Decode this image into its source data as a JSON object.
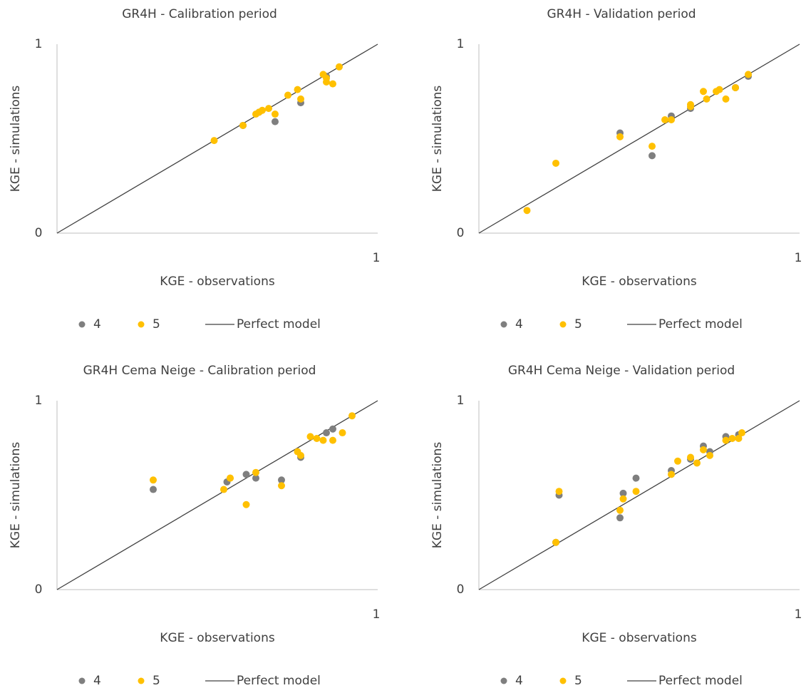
{
  "chart_data": [
    {
      "type": "scatter",
      "title": "GR4H - Calibration period",
      "xlabel": "KGE - observations",
      "ylabel": "KGE - simulations",
      "xlim": [
        0,
        1
      ],
      "ylim": [
        0,
        1
      ],
      "xticks": [
        1
      ],
      "yticks": [
        0,
        1
      ],
      "legend": "bottom",
      "series": [
        {
          "name": "4",
          "color": "#7f7f7f",
          "x": [
            0.58,
            0.68,
            0.76,
            0.63,
            0.84
          ],
          "values": [
            0.57,
            0.59,
            0.69,
            0.64,
            0.83
          ]
        },
        {
          "name": "5",
          "color": "#ffc000",
          "x": [
            0.49,
            0.58,
            0.62,
            0.63,
            0.64,
            0.66,
            0.68,
            0.72,
            0.75,
            0.76,
            0.83,
            0.84,
            0.84,
            0.86,
            0.88
          ],
          "values": [
            0.49,
            0.57,
            0.63,
            0.64,
            0.65,
            0.66,
            0.63,
            0.73,
            0.76,
            0.71,
            0.84,
            0.82,
            0.8,
            0.79,
            0.88
          ]
        },
        {
          "name": "Perfect model",
          "type": "line",
          "color": "#404040",
          "x": [
            0,
            1
          ],
          "values": [
            0,
            1
          ]
        }
      ]
    },
    {
      "type": "scatter",
      "title": "GR4H - Validation period",
      "xlabel": "KGE - observations",
      "ylabel": "KGE - simulations",
      "xlim": [
        0,
        1
      ],
      "ylim": [
        0,
        1
      ],
      "xticks": [
        1
      ],
      "yticks": [
        0,
        1
      ],
      "legend": "bottom",
      "series": [
        {
          "name": "4",
          "color": "#7f7f7f",
          "x": [
            0.44,
            0.54,
            0.6,
            0.66,
            0.8,
            0.84
          ],
          "values": [
            0.53,
            0.41,
            0.62,
            0.66,
            0.77,
            0.83
          ]
        },
        {
          "name": "5",
          "color": "#ffc000",
          "x": [
            0.15,
            0.24,
            0.44,
            0.54,
            0.58,
            0.6,
            0.66,
            0.66,
            0.7,
            0.71,
            0.74,
            0.75,
            0.77,
            0.8,
            0.84
          ],
          "values": [
            0.12,
            0.37,
            0.51,
            0.46,
            0.6,
            0.6,
            0.68,
            0.67,
            0.75,
            0.71,
            0.75,
            0.76,
            0.71,
            0.77,
            0.84
          ]
        },
        {
          "name": "Perfect model",
          "type": "line",
          "color": "#404040",
          "x": [
            0,
            1
          ],
          "values": [
            0,
            1
          ]
        }
      ]
    },
    {
      "type": "scatter",
      "title": "GR4H Cema Neige - Calibration period",
      "xlabel": "KGE - observations",
      "ylabel": "KGE - simulations",
      "xlim": [
        0,
        1
      ],
      "ylim": [
        0,
        1
      ],
      "xticks": [
        1
      ],
      "yticks": [
        0,
        1
      ],
      "legend": "bottom",
      "series": [
        {
          "name": "4",
          "color": "#7f7f7f",
          "x": [
            0.3,
            0.53,
            0.59,
            0.62,
            0.7,
            0.76,
            0.84,
            0.86
          ],
          "values": [
            0.53,
            0.57,
            0.61,
            0.59,
            0.58,
            0.7,
            0.83,
            0.85
          ]
        },
        {
          "name": "5",
          "color": "#ffc000",
          "x": [
            0.3,
            0.52,
            0.54,
            0.54,
            0.59,
            0.62,
            0.7,
            0.75,
            0.76,
            0.79,
            0.81,
            0.83,
            0.86,
            0.89,
            0.92
          ],
          "values": [
            0.58,
            0.53,
            0.59,
            0.59,
            0.45,
            0.62,
            0.55,
            0.73,
            0.71,
            0.81,
            0.8,
            0.79,
            0.79,
            0.83,
            0.92
          ]
        },
        {
          "name": "Perfect model",
          "type": "line",
          "color": "#404040",
          "x": [
            0,
            1
          ],
          "values": [
            0,
            1
          ]
        }
      ]
    },
    {
      "type": "scatter",
      "title": "GR4H Cema Neige - Validation period",
      "xlabel": "KGE - observations",
      "ylabel": "KGE - simulations",
      "xlim": [
        0,
        1
      ],
      "ylim": [
        0,
        1
      ],
      "xticks": [
        1
      ],
      "yticks": [
        0,
        1
      ],
      "legend": "bottom",
      "series": [
        {
          "name": "4",
          "color": "#7f7f7f",
          "x": [
            0.25,
            0.24,
            0.45,
            0.44,
            0.49,
            0.6,
            0.66,
            0.7,
            0.72,
            0.77,
            0.81
          ],
          "values": [
            0.5,
            0.25,
            0.51,
            0.38,
            0.59,
            0.63,
            0.69,
            0.76,
            0.73,
            0.81,
            0.82
          ]
        },
        {
          "name": "5",
          "color": "#ffc000",
          "x": [
            0.25,
            0.24,
            0.44,
            0.45,
            0.49,
            0.6,
            0.62,
            0.66,
            0.68,
            0.7,
            0.72,
            0.77,
            0.79,
            0.81,
            0.82
          ],
          "values": [
            0.52,
            0.25,
            0.42,
            0.48,
            0.52,
            0.61,
            0.68,
            0.7,
            0.67,
            0.74,
            0.71,
            0.79,
            0.8,
            0.8,
            0.83
          ]
        },
        {
          "name": "Perfect model",
          "type": "line",
          "color": "#404040",
          "x": [
            0,
            1
          ],
          "values": [
            0,
            1
          ]
        }
      ]
    }
  ]
}
